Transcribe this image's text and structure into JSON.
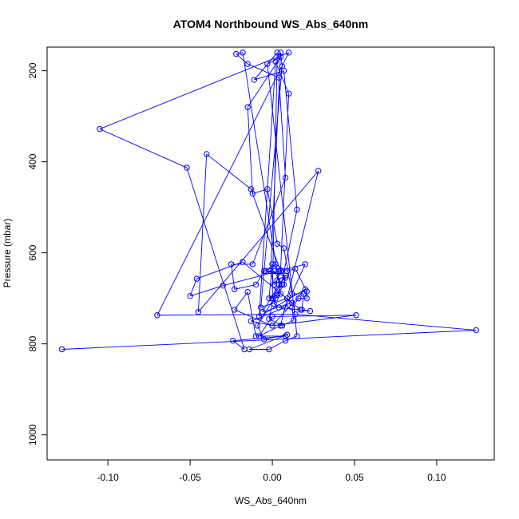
{
  "chart_data": {
    "type": "line",
    "title": "ATOM4 Northbound WS_Abs_640nm",
    "xlabel": "WS_Abs_640nm",
    "ylabel": "Pressure (mbar)",
    "xlim": [
      -0.137,
      0.135
    ],
    "ylim": [
      1055,
      148
    ],
    "y_reversed": true,
    "grid": false,
    "x_ticks": [
      -0.1,
      -0.05,
      0.0,
      0.05,
      0.1
    ],
    "x_tick_labels": [
      "-0.10",
      "-0.05",
      "0.00",
      "0.05",
      "0.10"
    ],
    "y_ticks": [
      200,
      400,
      600,
      800,
      1000
    ],
    "y_tick_labels": [
      "200",
      "400",
      "600",
      "800",
      "1000"
    ],
    "series": [
      {
        "color": "#0000ff",
        "marker": "open-circle",
        "points": [
          [
            -0.128,
            812
          ],
          [
            0.124,
            770
          ],
          [
            0.014,
            735
          ],
          [
            -0.07,
            737
          ],
          [
            0.01,
            160
          ],
          [
            -0.105,
            328
          ],
          [
            -0.052,
            413
          ],
          [
            -0.017,
            812
          ],
          [
            -0.024,
            793
          ],
          [
            0.008,
            783
          ],
          [
            -0.01,
            783
          ],
          [
            -0.015,
            686
          ],
          [
            -0.023,
            725
          ],
          [
            0.0,
            760
          ],
          [
            0.051,
            737
          ],
          [
            0.0,
            740
          ],
          [
            -0.008,
            783
          ],
          [
            0.005,
            760
          ],
          [
            0.028,
            420
          ],
          [
            -0.045,
            730
          ],
          [
            -0.04,
            383
          ],
          [
            -0.013,
            460
          ],
          [
            0.005,
            640
          ],
          [
            0.01,
            250
          ],
          [
            0.002,
            180
          ],
          [
            -0.008,
            740
          ],
          [
            0.02,
            680
          ],
          [
            0.0,
            760
          ],
          [
            -0.013,
            750
          ],
          [
            0.008,
            720
          ],
          [
            0.02,
            625
          ],
          [
            -0.03,
            672
          ],
          [
            -0.05,
            695
          ],
          [
            -0.046,
            657
          ],
          [
            -0.018,
            620
          ],
          [
            0.012,
            710
          ],
          [
            -0.006,
            730
          ],
          [
            0.004,
            670
          ],
          [
            0.006,
            660
          ],
          [
            0.015,
            505
          ],
          [
            0.007,
            200
          ],
          [
            -0.011,
            220
          ],
          [
            0.003,
            160
          ],
          [
            0.0,
            700
          ],
          [
            0.008,
            650
          ],
          [
            -0.004,
            640
          ],
          [
            0.001,
            640
          ],
          [
            0.006,
            670
          ],
          [
            -0.009,
            760
          ],
          [
            -0.005,
            790
          ],
          [
            0.009,
            780
          ],
          [
            -0.014,
            812
          ],
          [
            -0.002,
            812
          ],
          [
            0.008,
            793
          ],
          [
            0.015,
            783
          ],
          [
            -0.003,
            185
          ],
          [
            0.005,
            170
          ],
          [
            -0.015,
            280
          ],
          [
            -0.012,
            470
          ],
          [
            -0.003,
            460
          ],
          [
            0.003,
            580
          ],
          [
            0.007,
            590
          ],
          [
            0.012,
            690
          ],
          [
            0.019,
            690
          ],
          [
            0.018,
            725
          ],
          [
            0.023,
            728
          ],
          [
            0.004,
            720
          ],
          [
            0.001,
            712
          ],
          [
            0.002,
            700
          ],
          [
            0.005,
            690
          ],
          [
            -0.018,
            160
          ],
          [
            -0.022,
            163
          ],
          [
            -0.015,
            185
          ],
          [
            0.004,
            215
          ],
          [
            0.008,
            435
          ],
          [
            -0.012,
            625
          ],
          [
            -0.025,
            625
          ],
          [
            -0.023,
            680
          ],
          [
            -0.01,
            670
          ],
          [
            -0.005,
            640
          ],
          [
            0.002,
            625
          ],
          [
            0.009,
            640
          ],
          [
            0.014,
            635
          ],
          [
            0.021,
            685
          ],
          [
            0.021,
            700
          ],
          [
            0.016,
            700
          ],
          [
            0.012,
            720
          ],
          [
            0.013,
            748
          ],
          [
            0.006,
            760
          ],
          [
            -0.002,
            745
          ],
          [
            0.004,
            640
          ],
          [
            0.0,
            625
          ],
          [
            -0.002,
            700
          ],
          [
            0.003,
            693
          ],
          [
            0.007,
            670
          ],
          [
            0.008,
            655
          ],
          [
            0.005,
            640
          ],
          [
            0.003,
            660
          ],
          [
            0.001,
            670
          ],
          [
            -0.001,
            640
          ],
          [
            0.005,
            160
          ],
          [
            0.006,
            190
          ],
          [
            -0.007,
            720
          ],
          [
            0.009,
            700
          ],
          [
            0.017,
            725
          ]
        ]
      }
    ]
  }
}
